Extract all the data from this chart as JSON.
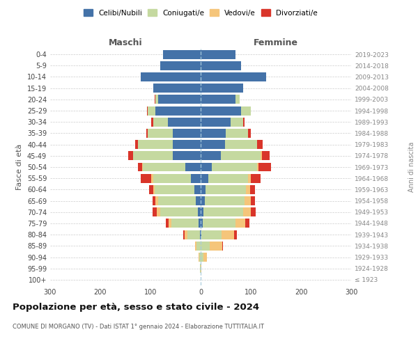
{
  "age_groups": [
    "100+",
    "95-99",
    "90-94",
    "85-89",
    "80-84",
    "75-79",
    "70-74",
    "65-69",
    "60-64",
    "55-59",
    "50-54",
    "45-49",
    "40-44",
    "35-39",
    "30-34",
    "25-29",
    "20-24",
    "15-19",
    "10-14",
    "5-9",
    "0-4"
  ],
  "birth_years": [
    "≤ 1923",
    "1924-1928",
    "1929-1933",
    "1934-1938",
    "1939-1943",
    "1944-1948",
    "1949-1953",
    "1954-1958",
    "1959-1963",
    "1964-1968",
    "1969-1973",
    "1974-1978",
    "1979-1983",
    "1984-1988",
    "1989-1993",
    "1994-1998",
    "1999-2003",
    "2004-2008",
    "2009-2013",
    "2014-2018",
    "2019-2023"
  ],
  "males": {
    "celibi": [
      0,
      0,
      0,
      0,
      2,
      4,
      5,
      10,
      12,
      20,
      30,
      55,
      55,
      55,
      65,
      90,
      85,
      95,
      120,
      80,
      75
    ],
    "coniugati": [
      0,
      1,
      3,
      8,
      25,
      55,
      75,
      75,
      80,
      75,
      85,
      80,
      70,
      50,
      30,
      15,
      5,
      0,
      0,
      0,
      0
    ],
    "vedovi": [
      0,
      0,
      1,
      3,
      5,
      5,
      8,
      5,
      3,
      3,
      2,
      0,
      0,
      0,
      0,
      0,
      0,
      0,
      0,
      0,
      0
    ],
    "divorziati": [
      0,
      0,
      0,
      0,
      3,
      5,
      8,
      6,
      8,
      22,
      8,
      10,
      5,
      3,
      3,
      2,
      1,
      0,
      0,
      0,
      0
    ]
  },
  "females": {
    "nubili": [
      0,
      0,
      0,
      0,
      2,
      4,
      5,
      8,
      10,
      15,
      22,
      40,
      48,
      50,
      60,
      80,
      70,
      85,
      130,
      80,
      70
    ],
    "coniugate": [
      0,
      0,
      5,
      18,
      40,
      65,
      80,
      80,
      80,
      80,
      90,
      80,
      65,
      45,
      25,
      20,
      8,
      0,
      0,
      0,
      0
    ],
    "vedove": [
      0,
      2,
      8,
      25,
      25,
      20,
      15,
      12,
      8,
      5,
      3,
      2,
      0,
      0,
      0,
      0,
      0,
      0,
      0,
      0,
      0
    ],
    "divorziate": [
      0,
      0,
      0,
      2,
      5,
      8,
      10,
      8,
      10,
      20,
      25,
      15,
      10,
      5,
      2,
      0,
      0,
      0,
      0,
      0,
      0
    ]
  },
  "colors": {
    "celibi": "#4472a8",
    "coniugati": "#c5d9a0",
    "vedovi": "#f5c57a",
    "divorziati": "#d9352a"
  },
  "xlim": 300,
  "title": "Popolazione per età, sesso e stato civile - 2024",
  "subtitle": "COMUNE DI MORGANO (TV) - Dati ISTAT 1° gennaio 2024 - Elaborazione TUTTITALIA.IT",
  "ylabel_left": "Fasce di età",
  "ylabel_right": "Anni di nascita",
  "xlabel_left": "Maschi",
  "xlabel_right": "Femmine"
}
